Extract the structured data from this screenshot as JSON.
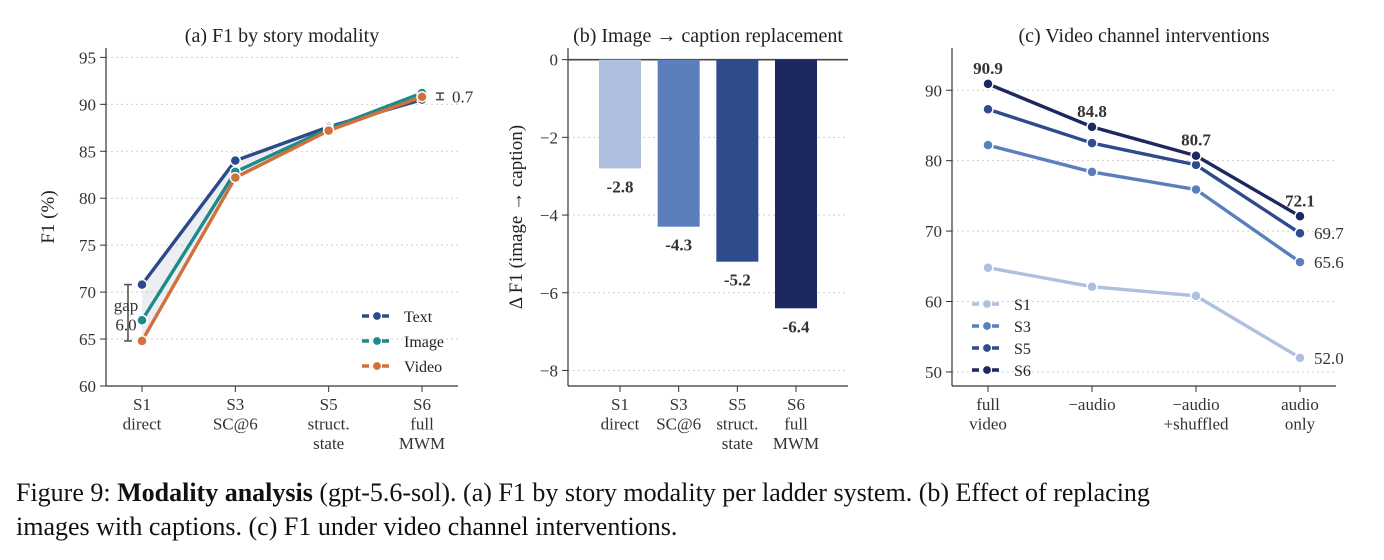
{
  "chart_data": [
    {
      "type": "line",
      "title": "(a) F1 by story modality",
      "ylabel": "F1 (%)",
      "xlabel": "",
      "ylim": [
        60,
        96
      ],
      "yticks": [
        60,
        65,
        70,
        75,
        80,
        85,
        90,
        95
      ],
      "categories": [
        "S1\ndirect",
        "S3\nSC@6",
        "S5\nstruct.\nstate",
        "S6\nfull\nMWM"
      ],
      "series": [
        {
          "name": "Text",
          "color": "#2c4a8a",
          "values": [
            70.8,
            84.0,
            87.6,
            90.5
          ]
        },
        {
          "name": "Image",
          "color": "#1e8a8a",
          "values": [
            67.0,
            82.8,
            87.4,
            91.2
          ]
        },
        {
          "name": "Video",
          "color": "#d2703c",
          "values": [
            64.8,
            82.2,
            87.2,
            90.8
          ]
        }
      ],
      "annotations": [
        {
          "text": "gap\n6.0",
          "x": 0,
          "y_range": [
            64.8,
            70.8
          ]
        },
        {
          "text": "0.7",
          "x": 3,
          "y_range": [
            90.5,
            91.2
          ]
        }
      ],
      "grid": true,
      "legend": "lower-right"
    },
    {
      "type": "bar",
      "title": "(b) Image → caption replacement",
      "ylabel": "Δ F1 (image → caption)",
      "xlabel": "",
      "ylim": [
        -8.4,
        0.3
      ],
      "yticks": [
        0,
        -2,
        -4,
        -6,
        -8
      ],
      "ytick_labels": [
        "0",
        "−2",
        "−4",
        "−6",
        "−8"
      ],
      "categories": [
        "S1\ndirect",
        "S3\nSC@6",
        "S5\nstruct.\nstate",
        "S6\nfull\nMWM"
      ],
      "values": [
        -2.8,
        -4.3,
        -5.2,
        -6.4
      ],
      "value_labels": [
        "-2.8",
        "-4.3",
        "-5.2",
        "-6.4"
      ],
      "colors": [
        "#aebfdf",
        "#5b7fbd",
        "#2e4b8c",
        "#1d2861"
      ],
      "grid": true
    },
    {
      "type": "line",
      "title": "(c) Video channel interventions",
      "ylabel": "",
      "xlabel": "",
      "ylim": [
        48,
        96
      ],
      "yticks": [
        50,
        60,
        70,
        80,
        90
      ],
      "categories": [
        "full\nvideo",
        "−audio",
        "−audio\n+shuffled",
        "audio\nonly"
      ],
      "series": [
        {
          "name": "S1",
          "color": "#aebfdf",
          "values": [
            64.8,
            62.1,
            60.8,
            52.0
          ]
        },
        {
          "name": "S3",
          "color": "#5b7fbd",
          "values": [
            82.2,
            78.4,
            75.9,
            65.6
          ]
        },
        {
          "name": "S5",
          "color": "#2e4b8c",
          "values": [
            87.3,
            82.5,
            79.4,
            69.7
          ]
        },
        {
          "name": "S6",
          "color": "#1d2861",
          "values": [
            90.9,
            84.8,
            80.7,
            72.1
          ]
        }
      ],
      "point_labels": [
        {
          "series": "S6",
          "x": 0,
          "text": "90.9"
        },
        {
          "series": "S6",
          "x": 1,
          "text": "84.8"
        },
        {
          "series": "S6",
          "x": 2,
          "text": "80.7"
        },
        {
          "series": "S6",
          "x": 3,
          "text": "72.1"
        },
        {
          "series": "S5",
          "x": 3,
          "text": "69.7"
        },
        {
          "series": "S3",
          "x": 3,
          "text": "65.6"
        },
        {
          "series": "S1",
          "x": 3,
          "text": "52.0"
        }
      ],
      "grid": true,
      "legend": "lower-left"
    }
  ],
  "caption": {
    "prefix": "Figure 9: ",
    "bold": "Modality analysis",
    "rest_line1": " (gpt-5.6-sol). (a) F1 by story modality per ladder system. (b) Effect of replacing",
    "line2": "images with captions. (c) F1 under video channel interventions."
  }
}
